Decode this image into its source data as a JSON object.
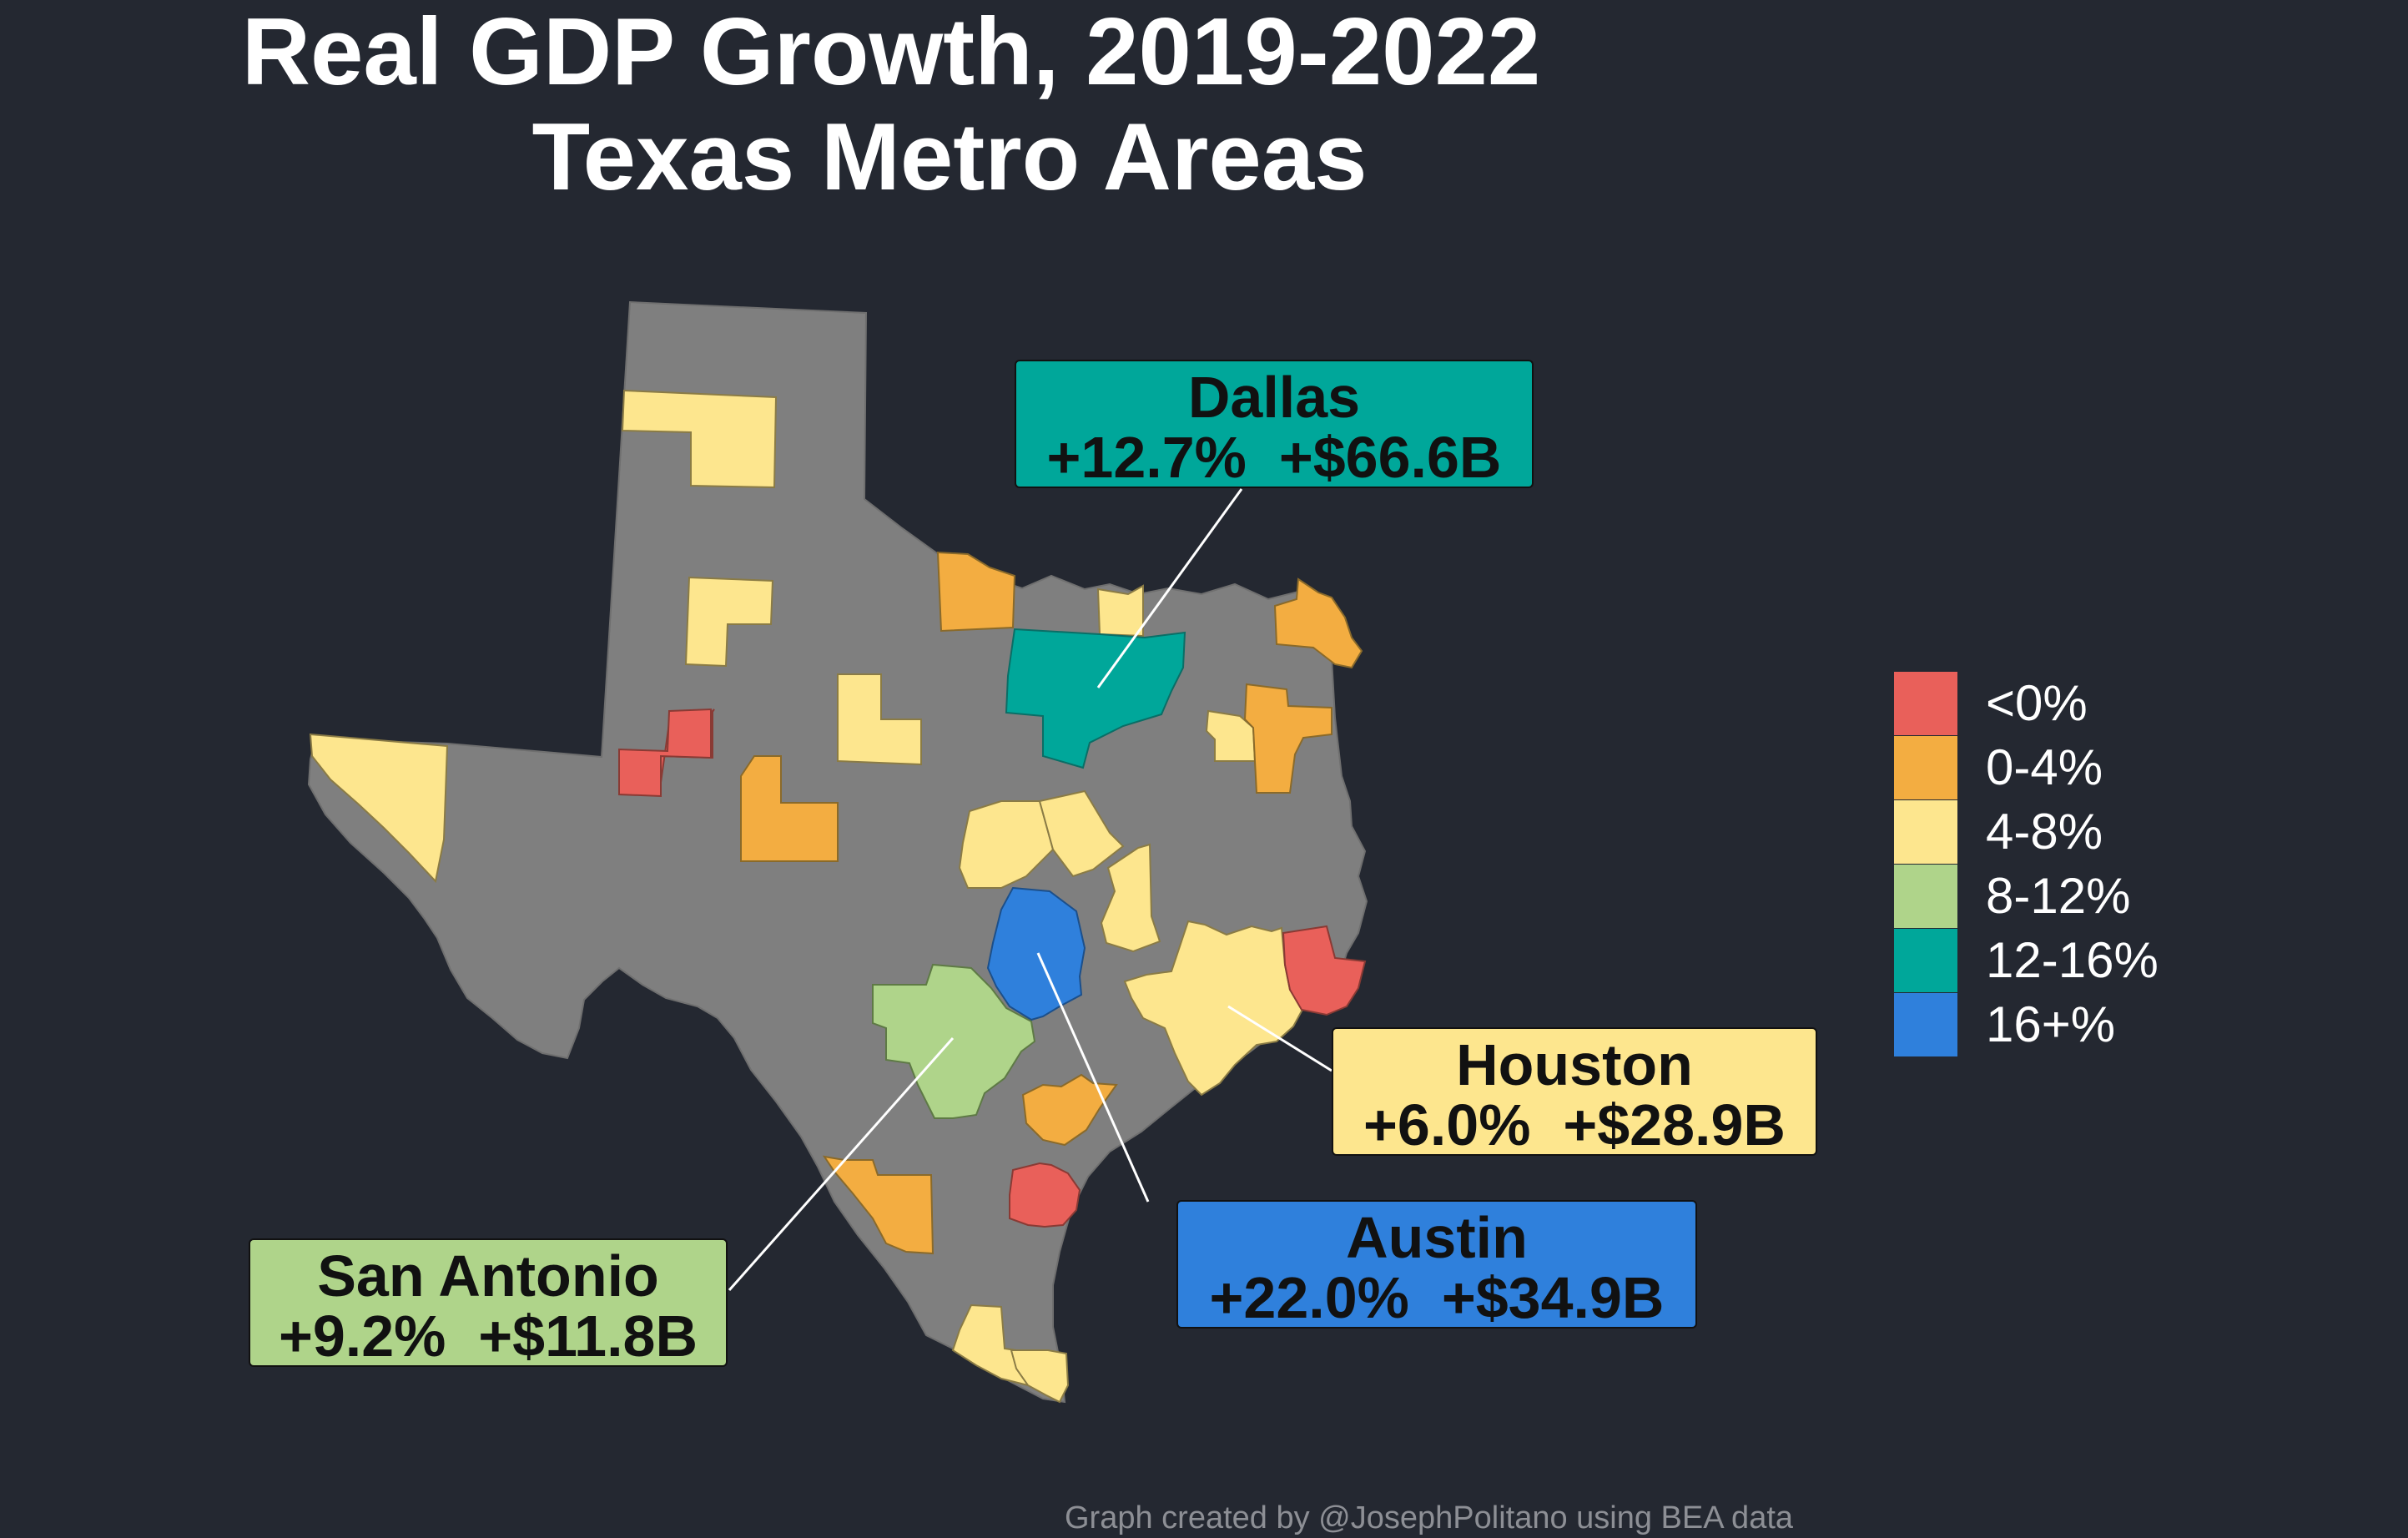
{
  "title": {
    "line1": "Real GDP Growth, 2019-2022",
    "line2": "Texas Metro Areas"
  },
  "colors": {
    "background": "#242831",
    "state_fill": "#7f7f7f",
    "neg": "#e9605a",
    "g0_4": "#f3ad41",
    "g4_8": "#fde68e",
    "g8_12": "#afd48a",
    "g12_16": "#00a79a",
    "g16_plus": "#2f80dc"
  },
  "legend": [
    {
      "label": "<0%",
      "color": "#e9605a"
    },
    {
      "label": "0-4%",
      "color": "#f3ad41"
    },
    {
      "label": "4-8%",
      "color": "#fde68e"
    },
    {
      "label": "8-12%",
      "color": "#afd48a"
    },
    {
      "label": "12-16%",
      "color": "#00a79a"
    },
    {
      "label": "16+%",
      "color": "#2f80dc"
    }
  ],
  "callouts": {
    "dallas": {
      "city": "Dallas",
      "growth": "+12.7%",
      "gdp_change": "+$66.6B",
      "color": "#00a79a"
    },
    "houston": {
      "city": "Houston",
      "growth": "+6.0%",
      "gdp_change": "+$28.9B",
      "color": "#fde68e"
    },
    "austin": {
      "city": "Austin",
      "growth": "+22.0%",
      "gdp_change": "+$34.9B",
      "color": "#2f80dc"
    },
    "san_antonio": {
      "city": "San Antonio",
      "growth": "+9.2%",
      "gdp_change": "+$11.8B",
      "color": "#afd48a"
    }
  },
  "credit": "Graph created by @JosephPolitano using BEA data"
}
